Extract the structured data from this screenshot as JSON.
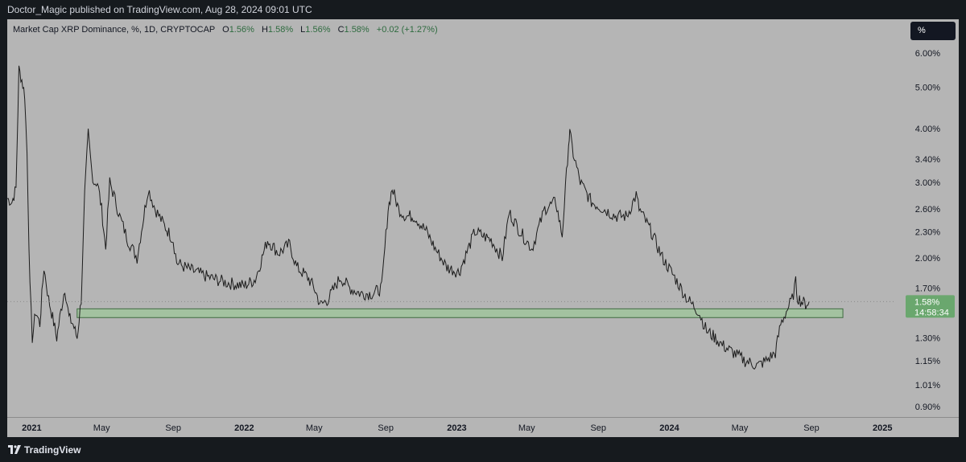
{
  "header": {
    "publisher_line": "Doctor_Magic published on TradingView.com, Aug 28, 2024 09:01 UTC"
  },
  "legend": {
    "symbol": "Market Cap XRP Dominance, %, 1D, CRYPTOCAP",
    "open_label": "O",
    "open_value": "1.56%",
    "high_label": "H",
    "high_value": "1.58%",
    "low_label": "L",
    "low_value": "1.56%",
    "close_label": "C",
    "close_value": "1.58%",
    "change": "+0.02 (+1.27%)"
  },
  "toolbar": {
    "scale_button": "%"
  },
  "price_tag": {
    "value": "1.58%",
    "countdown": "14:58:34"
  },
  "footer": {
    "brand": "TradingView"
  },
  "colors": {
    "background": "#161a1e",
    "plot_bg": "#b5b5b5",
    "line": "#1c1c1c",
    "zone_fill": "#9ec79a",
    "zone_border": "#3e6b40",
    "price_tag": "#6aa76e",
    "legend_value": "#2e6b3f"
  },
  "chart_data": {
    "type": "line",
    "title": "Market Cap XRP Dominance, %, 1D, CRYPTOCAP",
    "xlabel": "",
    "ylabel": "",
    "y_scale": "log",
    "ylim": [
      0.85,
      7.2
    ],
    "xlim": [
      "2020-11-20",
      "2025-01-20"
    ],
    "x_ticks": [
      {
        "label": "2021",
        "date": "2021-01-01",
        "bold": true
      },
      {
        "label": "May",
        "date": "2021-05-01",
        "bold": false
      },
      {
        "label": "Sep",
        "date": "2021-09-01",
        "bold": false
      },
      {
        "label": "2022",
        "date": "2022-01-01",
        "bold": true
      },
      {
        "label": "May",
        "date": "2022-05-01",
        "bold": false
      },
      {
        "label": "Sep",
        "date": "2022-09-01",
        "bold": false
      },
      {
        "label": "2023",
        "date": "2023-01-01",
        "bold": true
      },
      {
        "label": "May",
        "date": "2023-05-01",
        "bold": false
      },
      {
        "label": "Sep",
        "date": "2023-09-01",
        "bold": false
      },
      {
        "label": "2024",
        "date": "2024-01-01",
        "bold": true
      },
      {
        "label": "May",
        "date": "2024-05-01",
        "bold": false
      },
      {
        "label": "Sep",
        "date": "2024-09-01",
        "bold": false
      },
      {
        "label": "2025",
        "date": "2025-01-01",
        "bold": true
      }
    ],
    "y_ticks": [
      {
        "label": "6.00%",
        "value": 6.0
      },
      {
        "label": "5.00%",
        "value": 5.0
      },
      {
        "label": "4.00%",
        "value": 4.0
      },
      {
        "label": "3.40%",
        "value": 3.4
      },
      {
        "label": "3.00%",
        "value": 3.0
      },
      {
        "label": "2.60%",
        "value": 2.6
      },
      {
        "label": "2.30%",
        "value": 2.3
      },
      {
        "label": "2.00%",
        "value": 2.0
      },
      {
        "label": "1.70%",
        "value": 1.7
      },
      {
        "label": "1.30%",
        "value": 1.3
      },
      {
        "label": "1.15%",
        "value": 1.15
      },
      {
        "label": "1.01%",
        "value": 1.01
      },
      {
        "label": "0.90%",
        "value": 0.9
      }
    ],
    "series": [
      {
        "x": [
          "2020-11-20",
          "2020-11-28",
          "2020-12-05",
          "2020-12-10",
          "2020-12-15",
          "2020-12-20",
          "2020-12-24",
          "2020-12-29",
          "2021-01-02",
          "2021-01-08",
          "2021-01-15",
          "2021-01-22",
          "2021-01-30",
          "2021-02-06",
          "2021-02-13",
          "2021-02-20",
          "2021-02-27",
          "2021-03-06",
          "2021-03-13",
          "2021-03-20",
          "2021-03-27",
          "2021-04-02",
          "2021-04-08",
          "2021-04-14",
          "2021-04-18",
          "2021-04-24",
          "2021-05-01",
          "2021-05-08",
          "2021-05-15",
          "2021-05-22",
          "2021-06-01",
          "2021-06-15",
          "2021-07-01",
          "2021-07-20",
          "2021-08-01",
          "2021-08-15",
          "2021-09-01",
          "2021-09-07",
          "2021-09-21",
          "2021-10-10",
          "2021-11-01",
          "2021-12-01",
          "2022-01-01",
          "2022-01-20",
          "2022-02-10",
          "2022-03-01",
          "2022-03-20",
          "2022-04-01",
          "2022-04-20",
          "2022-05-01",
          "2022-05-12",
          "2022-05-25",
          "2022-06-15",
          "2022-07-01",
          "2022-07-20",
          "2022-08-10",
          "2022-08-25",
          "2022-09-05",
          "2022-09-12",
          "2022-09-23",
          "2022-10-05",
          "2022-10-20",
          "2022-11-10",
          "2022-11-25",
          "2022-12-15",
          "2023-01-05",
          "2023-02-01",
          "2023-03-01",
          "2023-03-20",
          "2023-04-01",
          "2023-04-20",
          "2023-05-10",
          "2023-06-01",
          "2023-06-20",
          "2023-07-01",
          "2023-07-12",
          "2023-07-14",
          "2023-07-20",
          "2023-08-01",
          "2023-08-20",
          "2023-09-10",
          "2023-10-01",
          "2023-10-20",
          "2023-11-05",
          "2023-11-10",
          "2023-12-01",
          "2023-12-20",
          "2024-01-10",
          "2024-02-01",
          "2024-02-20",
          "2024-03-05",
          "2024-03-20",
          "2024-04-01",
          "2024-04-20",
          "2024-05-10",
          "2024-06-01",
          "2024-06-15",
          "2024-07-01",
          "2024-07-10",
          "2024-07-20",
          "2024-07-30",
          "2024-08-05",
          "2024-08-08",
          "2024-08-15",
          "2024-08-22",
          "2024-08-28"
        ],
        "y": [
          2.75,
          2.7,
          2.9,
          5.5,
          5.2,
          4.8,
          3.5,
          1.7,
          1.3,
          1.5,
          1.4,
          1.9,
          1.6,
          1.45,
          1.3,
          1.5,
          1.7,
          1.45,
          1.4,
          1.3,
          1.6,
          2.8,
          3.9,
          3.2,
          3.0,
          3.0,
          2.6,
          2.1,
          3.0,
          2.8,
          2.5,
          2.2,
          2.0,
          2.9,
          2.6,
          2.4,
          2.2,
          1.95,
          1.9,
          1.85,
          1.8,
          1.75,
          1.72,
          1.78,
          2.2,
          2.05,
          2.15,
          1.9,
          1.8,
          1.7,
          1.55,
          1.6,
          1.8,
          1.7,
          1.65,
          1.65,
          1.7,
          2.6,
          2.9,
          2.6,
          2.5,
          2.5,
          2.3,
          2.1,
          1.9,
          1.85,
          2.3,
          2.2,
          2.0,
          2.55,
          2.3,
          2.1,
          2.6,
          2.7,
          2.25,
          3.7,
          3.9,
          3.5,
          3.0,
          2.7,
          2.6,
          2.5,
          2.5,
          2.8,
          2.6,
          2.3,
          2.0,
          1.8,
          1.6,
          1.5,
          1.35,
          1.3,
          1.25,
          1.2,
          1.15,
          1.12,
          1.15,
          1.2,
          1.4,
          1.5,
          1.6,
          1.75,
          1.62,
          1.58,
          1.56,
          1.58
        ]
      }
    ],
    "support_zone": {
      "y_range": [
        1.45,
        1.52
      ],
      "x_range": [
        "2021-03-20",
        "2024-10-25"
      ]
    },
    "last_value_line": 1.58,
    "grid": false
  }
}
